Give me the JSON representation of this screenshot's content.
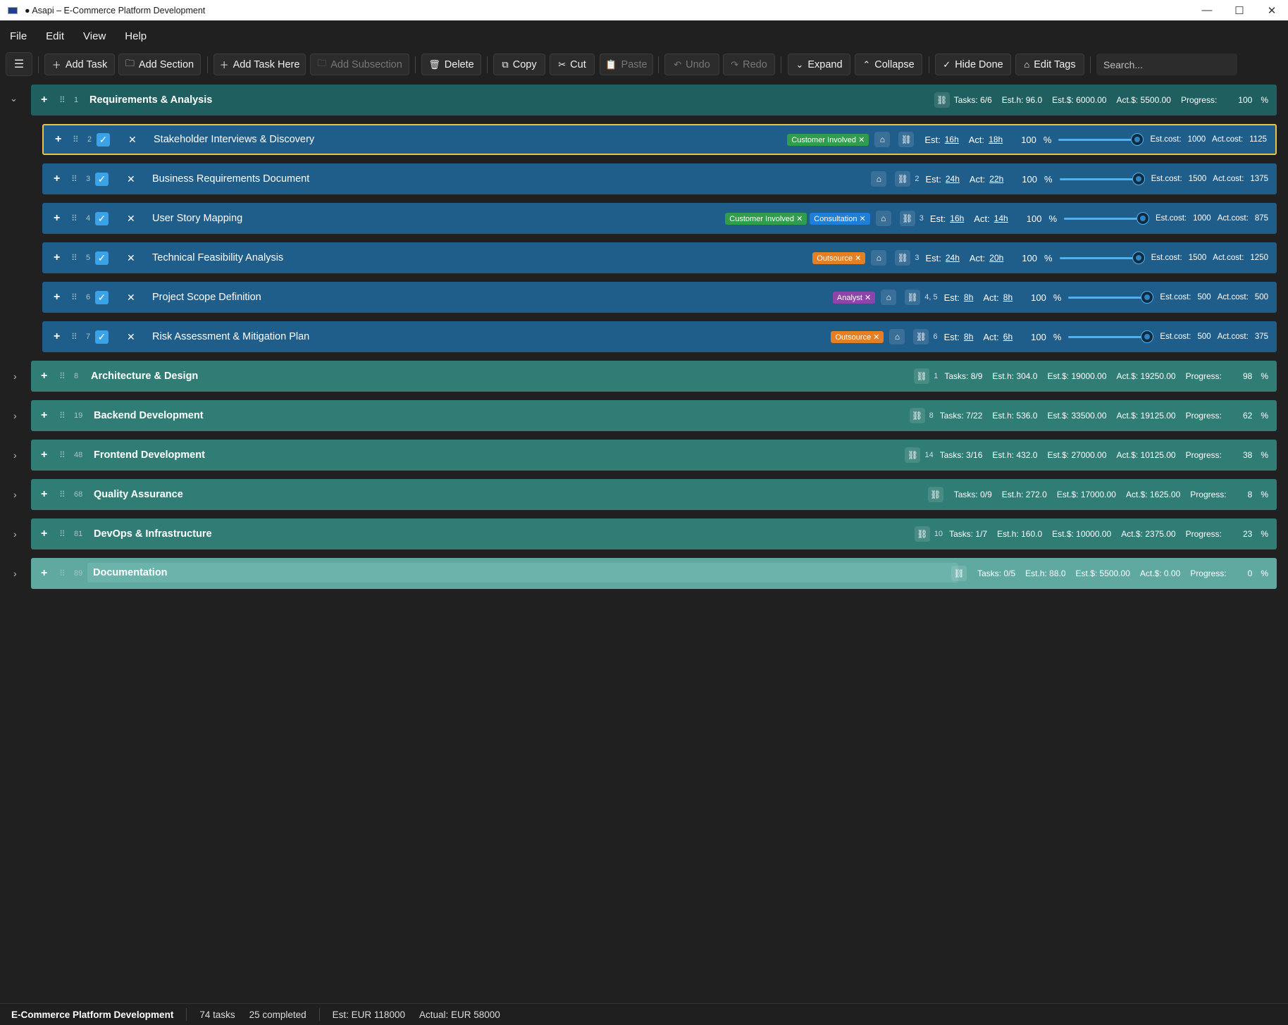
{
  "window": {
    "title": "● Asapi – E-Commerce Platform Development",
    "minimize": "—",
    "maximize": "☐",
    "close": "✕"
  },
  "menu": [
    "File",
    "Edit",
    "View",
    "Help"
  ],
  "toolbar": {
    "menu_icon": "☰",
    "add_task": "Add Task",
    "add_section": "Add Section",
    "add_task_here": "Add Task Here",
    "add_subsection": "Add Subsection",
    "delete": "Delete",
    "copy": "Copy",
    "cut": "Cut",
    "paste": "Paste",
    "undo": "Undo",
    "redo": "Redo",
    "expand": "Expand",
    "collapse": "Collapse",
    "hide_done": "Hide Done",
    "edit_tags": "Edit Tags",
    "search_placeholder": "Search..."
  },
  "sections": [
    {
      "num": "1",
      "name": "Requirements & Analysis",
      "dep": "",
      "tasks": "Tasks: 6/6",
      "esth": "Est.h: 96.0",
      "estc": "Est.$: 6000.00",
      "actc": "Act.$: 5500.00",
      "progress_label": "Progress:",
      "progress": "100",
      "pct": "%",
      "expanded": true
    },
    {
      "num": "8",
      "name": "Architecture & Design",
      "dep": "1",
      "tasks": "Tasks: 8/9",
      "esth": "Est.h: 304.0",
      "estc": "Est.$: 19000.00",
      "actc": "Act.$: 19250.00",
      "progress_label": "Progress:",
      "progress": "98",
      "pct": "%"
    },
    {
      "num": "19",
      "name": "Backend Development",
      "dep": "8",
      "tasks": "Tasks: 7/22",
      "esth": "Est.h: 536.0",
      "estc": "Est.$: 33500.00",
      "actc": "Act.$: 19125.00",
      "progress_label": "Progress:",
      "progress": "62",
      "pct": "%"
    },
    {
      "num": "48",
      "name": "Frontend Development",
      "dep": "14",
      "tasks": "Tasks: 3/16",
      "esth": "Est.h: 432.0",
      "estc": "Est.$: 27000.00",
      "actc": "Act.$: 10125.00",
      "progress_label": "Progress:",
      "progress": "38",
      "pct": "%"
    },
    {
      "num": "68",
      "name": "Quality Assurance",
      "dep": "",
      "tasks": "Tasks: 0/9",
      "esth": "Est.h: 272.0",
      "estc": "Est.$: 17000.00",
      "actc": "Act.$: 1625.00",
      "progress_label": "Progress:",
      "progress": "8",
      "pct": "%"
    },
    {
      "num": "81",
      "name": "DevOps & Infrastructure",
      "dep": "10",
      "tasks": "Tasks: 1/7",
      "esth": "Est.h: 160.0",
      "estc": "Est.$: 10000.00",
      "actc": "Act.$: 2375.00",
      "progress_label": "Progress:",
      "progress": "23",
      "pct": "%"
    },
    {
      "num": "89",
      "name": "Documentation",
      "dep": "",
      "tasks": "Tasks: 0/5",
      "esth": "Est.h: 88.0",
      "estc": "Est.$: 5500.00",
      "actc": "Act.$: 0.00",
      "progress_label": "Progress:",
      "progress": "0",
      "pct": "%"
    }
  ],
  "tasks": [
    {
      "num": "2",
      "name": "Stakeholder Interviews & Discovery",
      "tags": [
        {
          "label": "Customer Involved",
          "color": "#2e9d4e"
        }
      ],
      "dep": "",
      "est_label": "Est:",
      "est": "16h",
      "act_label": "Act:",
      "act": "18h",
      "progress": "100",
      "pct": "%",
      "progress_value": 1.0,
      "estcost_label": "Est.cost:",
      "estcost": "1000",
      "actcost_label": "Act.cost:",
      "actcost": "1125"
    },
    {
      "num": "3",
      "name": "Business Requirements Document",
      "tags": [],
      "dep": "2",
      "est_label": "Est:",
      "est": "24h",
      "act_label": "Act:",
      "act": "22h",
      "progress": "100",
      "pct": "%",
      "progress_value": 1.0,
      "estcost_label": "Est.cost:",
      "estcost": "1500",
      "actcost_label": "Act.cost:",
      "actcost": "1375"
    },
    {
      "num": "4",
      "name": "User Story Mapping",
      "tags": [
        {
          "label": "Customer Involved",
          "color": "#2e9d4e"
        },
        {
          "label": "Consultation",
          "color": "#1e7fd8"
        }
      ],
      "dep": "3",
      "est_label": "Est:",
      "est": "16h",
      "act_label": "Act:",
      "act": "14h",
      "progress": "100",
      "pct": "%",
      "progress_value": 1.0,
      "estcost_label": "Est.cost:",
      "estcost": "1000",
      "actcost_label": "Act.cost:",
      "actcost": "875"
    },
    {
      "num": "5",
      "name": "Technical Feasibility Analysis",
      "tags": [
        {
          "label": "Outsource",
          "color": "#e67e22"
        }
      ],
      "dep": "3",
      "est_label": "Est:",
      "est": "24h",
      "act_label": "Act:",
      "act": "20h",
      "progress": "100",
      "pct": "%",
      "progress_value": 1.0,
      "estcost_label": "Est.cost:",
      "estcost": "1500",
      "actcost_label": "Act.cost:",
      "actcost": "1250"
    },
    {
      "num": "6",
      "name": "Project Scope Definition",
      "tags": [
        {
          "label": "Analyst",
          "color": "#8e44ad"
        }
      ],
      "dep": "4, 5",
      "est_label": "Est:",
      "est": "8h",
      "act_label": "Act:",
      "act": "8h",
      "progress": "100",
      "pct": "%",
      "progress_value": 1.0,
      "estcost_label": "Est.cost:",
      "estcost": "500",
      "actcost_label": "Act.cost:",
      "actcost": "500"
    },
    {
      "num": "7",
      "name": "Risk Assessment & Mitigation Plan",
      "tags": [
        {
          "label": "Outsource",
          "color": "#e67e22"
        }
      ],
      "dep": "6",
      "est_label": "Est:",
      "est": "8h",
      "act_label": "Act:",
      "act": "6h",
      "progress": "100",
      "pct": "%",
      "progress_value": 1.0,
      "estcost_label": "Est.cost:",
      "estcost": "500",
      "actcost_label": "Act.cost:",
      "actcost": "375"
    }
  ],
  "statusbar": {
    "project": "E-Commerce Platform Development",
    "tasks": "74 tasks",
    "completed": "25 completed",
    "est": "Est: EUR 118000",
    "actual": "Actual: EUR 58000"
  }
}
